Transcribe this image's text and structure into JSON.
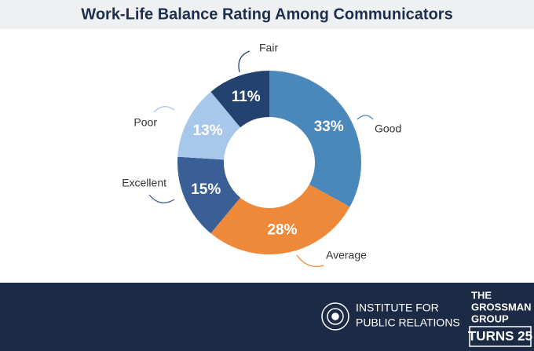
{
  "chart_data": {
    "type": "donut",
    "title": "Work-Life Balance Rating Among Communicators",
    "categories": [
      "Good",
      "Average",
      "Excellent",
      "Poor",
      "Fair"
    ],
    "values": [
      33,
      28,
      15,
      13,
      11
    ],
    "value_labels": [
      "33%",
      "28%",
      "15%",
      "13%",
      "11%"
    ],
    "colors": [
      "#4a87ba",
      "#ef893a",
      "#3a5f96",
      "#a8c8eb",
      "#24426f"
    ]
  },
  "footer": {
    "ipr": [
      "INSTITUTE FOR",
      "PUBLIC RELATIONS"
    ],
    "grossman": [
      "THE",
      "GROSSMAN",
      "GROUP"
    ],
    "grossman_badge": "TURNS 25"
  }
}
